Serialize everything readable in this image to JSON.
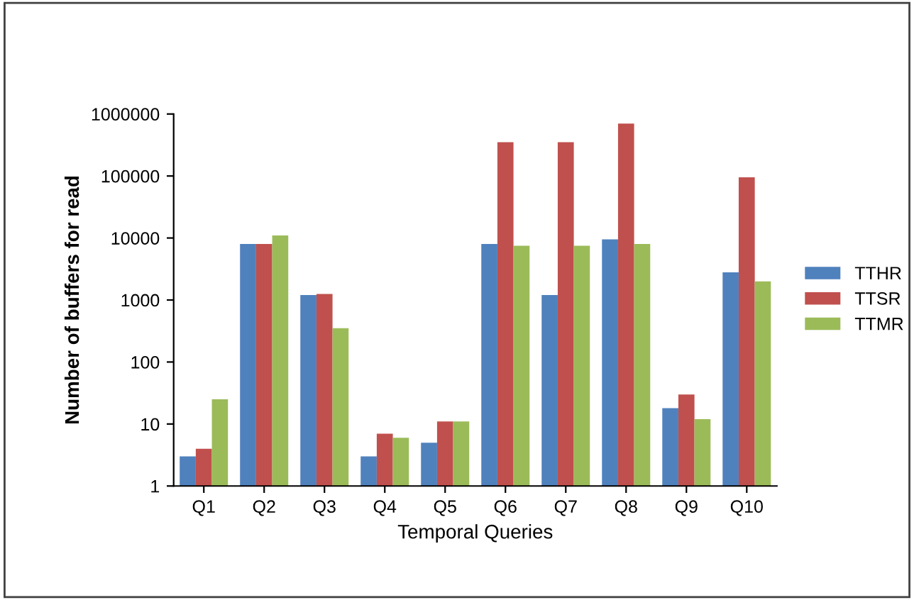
{
  "chart_data": {
    "type": "bar",
    "xlabel": "Temporal Queries",
    "ylabel": "Number of buffers for read",
    "categories": [
      "Q1",
      "Q2",
      "Q3",
      "Q4",
      "Q5",
      "Q6",
      "Q7",
      "Q8",
      "Q9",
      "Q10"
    ],
    "series": [
      {
        "name": "TTHR",
        "color": "#4f81bd",
        "values": [
          3,
          8000,
          1200,
          3,
          5,
          8000,
          1200,
          9500,
          18,
          2800
        ]
      },
      {
        "name": "TTSR",
        "color": "#c0504d",
        "values": [
          4,
          8000,
          1250,
          7,
          11,
          350000,
          350000,
          700000,
          30,
          95000
        ]
      },
      {
        "name": "TTMR",
        "color": "#9bbb59",
        "values": [
          25,
          11000,
          350,
          6,
          11,
          7500,
          7500,
          8000,
          12,
          2000
        ]
      }
    ],
    "log": "y",
    "ylim": [
      1,
      1000000
    ],
    "yticks": [
      1,
      10,
      100,
      1000,
      10000,
      100000,
      1000000
    ],
    "grid": false,
    "legend": "right"
  }
}
